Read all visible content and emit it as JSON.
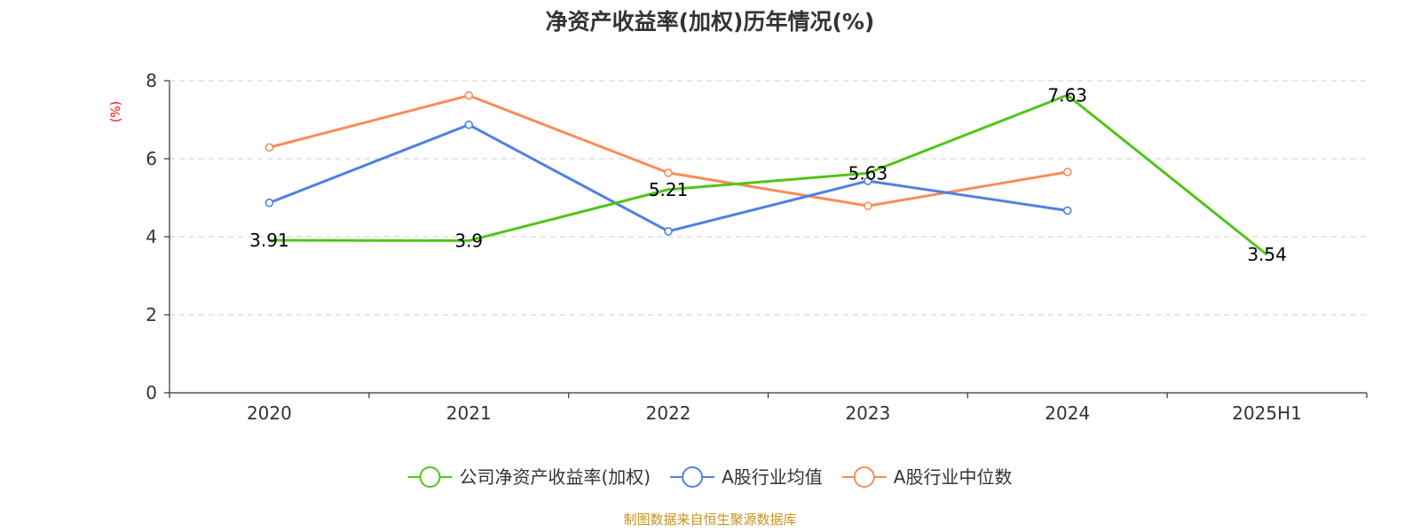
{
  "chart_data": {
    "type": "line",
    "title": "净资产收益率(加权)历年情况(%)",
    "ylabel": "(%)",
    "xlabel": "",
    "ylim": [
      0,
      8
    ],
    "yticks": [
      0,
      2,
      4,
      6,
      8
    ],
    "grid": true,
    "legend_position": "bottom",
    "categories": [
      "2020",
      "2021",
      "2022",
      "2023",
      "2024",
      "2025H1"
    ],
    "series": [
      {
        "name": "公司净资产收益率(加权)",
        "color": "#52c41a",
        "values": [
          3.91,
          3.9,
          5.21,
          5.63,
          7.63,
          3.54
        ],
        "labels": [
          "3.91",
          "3.9",
          "5.21",
          "5.63",
          "7.63",
          "3.54"
        ],
        "show_labels": true
      },
      {
        "name": "A股行业均值",
        "color": "#4f81e0",
        "values": [
          4.87,
          6.87,
          4.14,
          5.43,
          4.67,
          null
        ],
        "show_labels": false
      },
      {
        "name": "A股行业中位数",
        "color": "#fa8c5a",
        "values": [
          6.29,
          7.62,
          5.64,
          4.79,
          5.66,
          null
        ],
        "show_labels": false
      }
    ],
    "source": "制图数据来自恒生聚源数据库"
  }
}
